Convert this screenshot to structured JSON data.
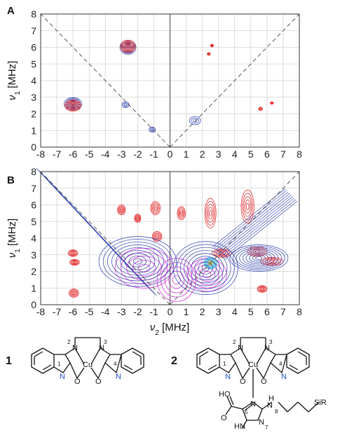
{
  "figure": {
    "panel_a_letter": "A",
    "panel_b_letter": "B",
    "x_axis_label": "ν2 [MHz]",
    "y_axis_label": "ν1 [MHz]",
    "compound_1_number": "1",
    "compound_2_number": "2"
  },
  "chart_data": [
    {
      "panel": "A",
      "type": "scatter",
      "subtype": "2D HYSCORE contour plot",
      "xlabel": "ν2 [MHz]",
      "ylabel": "ν1 [MHz]",
      "xlim": [
        -8,
        8
      ],
      "ylim": [
        0,
        8
      ],
      "x_ticks": [
        -8,
        -7,
        -6,
        -5,
        -4,
        -3,
        -2,
        -1,
        0,
        1,
        2,
        3,
        4,
        5,
        6,
        7,
        8
      ],
      "y_ticks": [
        0,
        1,
        2,
        3,
        4,
        5,
        6,
        7,
        8
      ],
      "grid": true,
      "diagonals": "dashed ν1 = |ν2|",
      "colors": {
        "blue": "#2b3fae",
        "red": "#e0191b",
        "grid": "#d2d2d2"
      },
      "features": [
        {
          "x": -6.0,
          "y": 2.6,
          "rx": 0.55,
          "ry": 0.38,
          "color": "blue",
          "level": "strong"
        },
        {
          "x": -6.0,
          "y": 2.5,
          "rx": 0.5,
          "ry": 0.34,
          "color": "red",
          "level": "strong"
        },
        {
          "x": -2.6,
          "y": 6.0,
          "rx": 0.5,
          "ry": 0.42,
          "color": "blue",
          "level": "strong"
        },
        {
          "x": -2.6,
          "y": 6.05,
          "rx": 0.45,
          "ry": 0.38,
          "color": "red",
          "level": "strong"
        },
        {
          "x": -2.75,
          "y": 2.55,
          "rx": 0.22,
          "ry": 0.18,
          "color": "blue",
          "level": "weak"
        },
        {
          "x": -1.1,
          "y": 1.05,
          "rx": 0.2,
          "ry": 0.16,
          "color": "blue",
          "level": "weak"
        },
        {
          "x": 1.55,
          "y": 1.6,
          "rx": 0.35,
          "ry": 0.25,
          "color": "blue",
          "level": "weak"
        },
        {
          "x": 2.6,
          "y": 6.1,
          "rx": 0.1,
          "ry": 0.08,
          "color": "red",
          "level": "weak"
        },
        {
          "x": 2.4,
          "y": 5.6,
          "rx": 0.1,
          "ry": 0.08,
          "color": "red",
          "level": "weak"
        },
        {
          "x": 5.6,
          "y": 2.3,
          "rx": 0.12,
          "ry": 0.1,
          "color": "red",
          "level": "weak"
        },
        {
          "x": 6.3,
          "y": 2.65,
          "rx": 0.1,
          "ry": 0.08,
          "color": "red",
          "level": "weak"
        }
      ]
    },
    {
      "panel": "B",
      "type": "scatter",
      "subtype": "2D HYSCORE contour plot",
      "xlabel": "ν2 [MHz]",
      "ylabel": "ν1 [MHz]",
      "xlim": [
        -8,
        8
      ],
      "ylim": [
        0,
        8
      ],
      "x_ticks": [
        -8,
        -7,
        -6,
        -5,
        -4,
        -3,
        -2,
        -1,
        0,
        1,
        2,
        3,
        4,
        5,
        6,
        7,
        8
      ],
      "y_ticks": [
        0,
        1,
        2,
        3,
        4,
        5,
        6,
        7,
        8
      ],
      "grid": true,
      "diagonals": "dashed ν1 = |ν2|",
      "colors": {
        "blue": "#2b3fae",
        "red": "#e0191b",
        "magenta": "#d21fd6",
        "cyan": "#19b8d8",
        "yellow": "#e6c21c",
        "grid": "#d2d2d2"
      },
      "features": [
        {
          "x": -6.0,
          "y": 3.1,
          "rx": 0.3,
          "ry": 0.2,
          "color": "red",
          "level": "medium"
        },
        {
          "x": -5.9,
          "y": 2.55,
          "rx": 0.3,
          "ry": 0.18,
          "color": "red",
          "level": "medium"
        },
        {
          "x": -5.95,
          "y": 0.7,
          "rx": 0.3,
          "ry": 0.25,
          "color": "red",
          "level": "medium"
        },
        {
          "x": -3.0,
          "y": 5.7,
          "rx": 0.25,
          "ry": 0.3,
          "color": "red",
          "level": "medium"
        },
        {
          "x": -2.0,
          "y": 5.2,
          "rx": 0.2,
          "ry": 0.25,
          "color": "red",
          "level": "medium"
        },
        {
          "x": -0.9,
          "y": 5.8,
          "rx": 0.3,
          "ry": 0.4,
          "color": "red",
          "level": "medium"
        },
        {
          "x": -0.8,
          "y": 4.1,
          "rx": 0.3,
          "ry": 0.3,
          "color": "red",
          "level": "medium"
        },
        {
          "x": 0.7,
          "y": 5.5,
          "rx": 0.25,
          "ry": 0.4,
          "color": "red",
          "level": "medium"
        },
        {
          "x": 2.5,
          "y": 5.5,
          "rx": 0.35,
          "ry": 0.9,
          "color": "red",
          "level": "medium"
        },
        {
          "x": 4.8,
          "y": 5.9,
          "rx": 0.4,
          "ry": 1.0,
          "color": "red",
          "level": "medium"
        },
        {
          "x": 3.2,
          "y": 3.1,
          "rx": 0.6,
          "ry": 0.25,
          "color": "red",
          "level": "medium"
        },
        {
          "x": 5.4,
          "y": 3.2,
          "rx": 0.6,
          "ry": 0.3,
          "color": "red",
          "level": "medium"
        },
        {
          "x": 6.3,
          "y": 2.6,
          "rx": 0.7,
          "ry": 0.25,
          "color": "red",
          "level": "medium"
        },
        {
          "x": 5.7,
          "y": 0.95,
          "rx": 0.3,
          "ry": 0.2,
          "color": "red",
          "level": "medium"
        },
        {
          "x": -1.6,
          "y": 2.2,
          "rx": 1.8,
          "ry": 1.2,
          "color": "magenta",
          "level": "medium"
        },
        {
          "x": 0.4,
          "y": 1.5,
          "rx": 1.2,
          "ry": 1.3,
          "color": "magenta",
          "level": "medium"
        },
        {
          "x": 2.3,
          "y": 1.8,
          "rx": 1.2,
          "ry": 1.0,
          "color": "magenta",
          "level": "medium"
        },
        {
          "x": 2.5,
          "y": 2.5,
          "rx": 0.4,
          "ry": 0.35,
          "color": "cyan",
          "level": "strong"
        },
        {
          "x": 2.5,
          "y": 2.5,
          "rx": 0.15,
          "ry": 0.12,
          "color": "yellow",
          "level": "peak"
        },
        {
          "x": -2.0,
          "y": 2.6,
          "rx": 2.4,
          "ry": 1.5,
          "color": "blue",
          "level": "broad"
        },
        {
          "x": 2.2,
          "y": 2.2,
          "rx": 2.0,
          "ry": 1.6,
          "color": "blue",
          "level": "broad"
        },
        {
          "x": 5.5,
          "y": 2.8,
          "rx": 1.8,
          "ry": 0.8,
          "color": "blue",
          "level": "broad"
        }
      ],
      "ridges": [
        {
          "x1": -7.9,
          "y1": 7.85,
          "x2": -1.2,
          "y2": 0.9,
          "color": "blue"
        },
        {
          "x1": 3.0,
          "y1": 3.1,
          "x2": 7.5,
          "y2": 6.6,
          "color": "blue"
        }
      ]
    }
  ]
}
